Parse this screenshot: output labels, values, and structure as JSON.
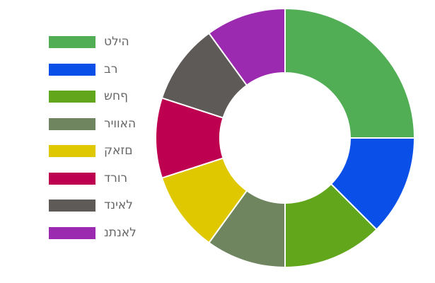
{
  "chart_data": {
    "type": "pie",
    "variant": "doughnut",
    "legend_position": "left",
    "categories": [
      "טליה",
      "בר",
      "שחף",
      "ריוואה",
      "קאזם",
      "דרור",
      "דניאל",
      "נתנאל"
    ],
    "values": [
      10,
      5,
      5,
      4,
      4,
      4,
      4,
      4
    ],
    "colors": [
      "#52ae55",
      "#0a50e8",
      "#62a61c",
      "#6e8560",
      "#e0c800",
      "#be0050",
      "#5e5a58",
      "#9c2ab0"
    ]
  }
}
